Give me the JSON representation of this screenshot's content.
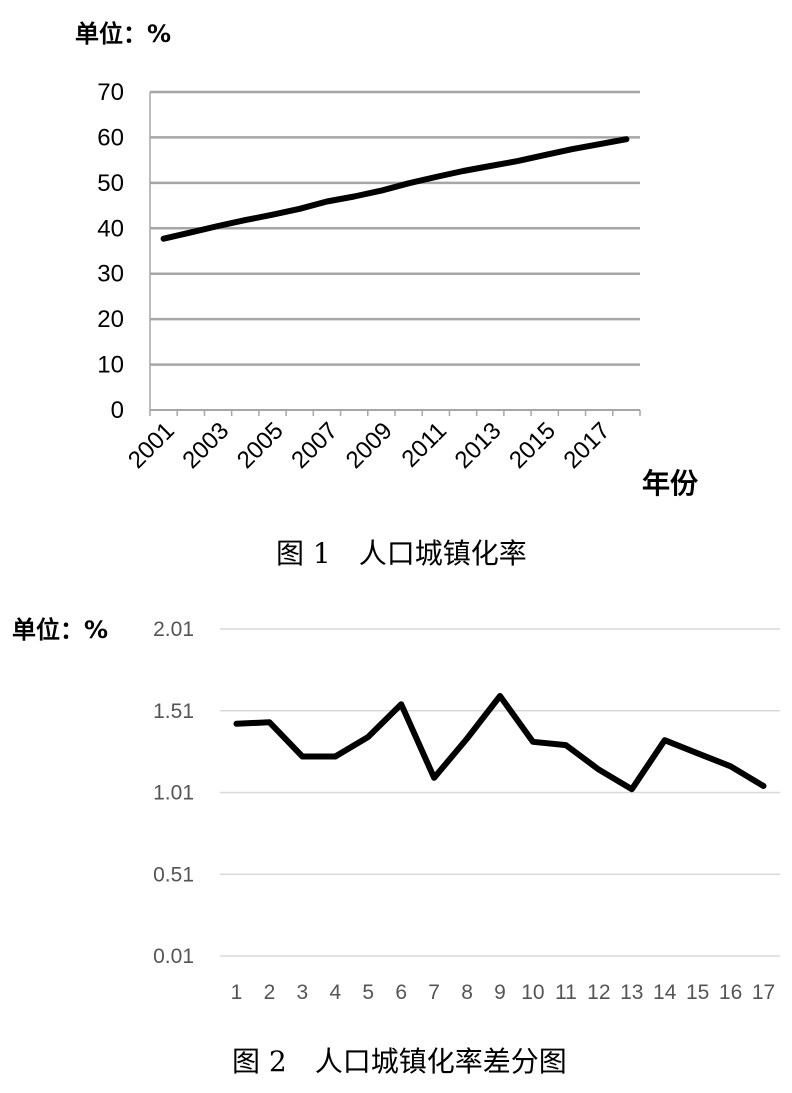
{
  "chart_data": [
    {
      "type": "line",
      "unit_label": "单位：%",
      "xlabel": "年份",
      "caption": "图 1　人口城镇化率",
      "x": [
        2001,
        2002,
        2003,
        2004,
        2005,
        2006,
        2007,
        2008,
        2009,
        2010,
        2011,
        2012,
        2013,
        2014,
        2015,
        2016,
        2017,
        2018
      ],
      "x_tick_labels": [
        "2001",
        "2003",
        "2005",
        "2007",
        "2009",
        "2011",
        "2013",
        "2015",
        "2017"
      ],
      "values": [
        37.7,
        39.1,
        40.5,
        41.8,
        43.0,
        44.3,
        45.9,
        47.0,
        48.3,
        49.9,
        51.3,
        52.6,
        53.7,
        54.8,
        56.1,
        57.4,
        58.5,
        59.6
      ],
      "y_ticks": [
        "0",
        "10",
        "20",
        "30",
        "40",
        "50",
        "60",
        "70"
      ],
      "ylim": [
        0,
        70
      ],
      "grid": true,
      "line_color": "#000000"
    },
    {
      "type": "line",
      "unit_label": "单位：%",
      "caption": "图 2　人口城镇化率差分图",
      "x": [
        "1",
        "2",
        "3",
        "4",
        "5",
        "6",
        "7",
        "8",
        "9",
        "10",
        "11",
        "12",
        "13",
        "14",
        "15",
        "16",
        "17"
      ],
      "values": [
        1.43,
        1.44,
        1.23,
        1.23,
        1.35,
        1.55,
        1.1,
        1.34,
        1.6,
        1.32,
        1.3,
        1.15,
        1.03,
        1.33,
        1.25,
        1.17,
        1.05
      ],
      "y_ticks": [
        "0.01",
        "0.51",
        "1.01",
        "1.51",
        "2.01"
      ],
      "ylim": [
        0.01,
        2.01
      ],
      "grid": true,
      "line_color": "#000000"
    }
  ]
}
